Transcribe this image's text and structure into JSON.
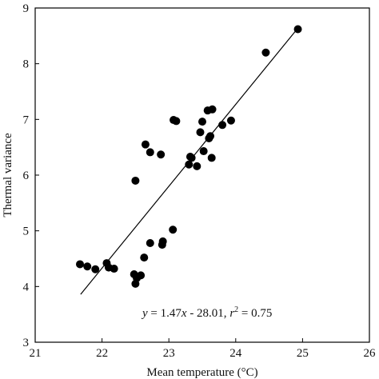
{
  "chart_data": {
    "type": "scatter",
    "xlabel": "Mean temperature (°C)",
    "ylabel": "Thermal variance",
    "xlim": [
      21,
      26
    ],
    "ylim": [
      3,
      9
    ],
    "x_ticks": [
      "21",
      "22",
      "23",
      "24",
      "25",
      "26"
    ],
    "y_ticks": [
      "3",
      "4",
      "5",
      "6",
      "7",
      "8",
      "9"
    ],
    "annotation": {
      "y": "y",
      "eq": " = 1.47",
      "x": "x",
      "rest": " - 28.01, ",
      "r": "r",
      "sup": "2",
      "tail": " = 0.75"
    },
    "fit_line": {
      "slope": 1.47,
      "intercept": -28.01,
      "x_range": [
        21.68,
        24.92
      ]
    },
    "grid": false,
    "points": [
      {
        "x": 21.67,
        "y": 4.4
      },
      {
        "x": 21.78,
        "y": 4.36
      },
      {
        "x": 21.9,
        "y": 4.31
      },
      {
        "x": 22.07,
        "y": 4.42
      },
      {
        "x": 22.1,
        "y": 4.34
      },
      {
        "x": 22.18,
        "y": 4.32
      },
      {
        "x": 22.48,
        "y": 4.22
      },
      {
        "x": 22.5,
        "y": 4.05
      },
      {
        "x": 22.52,
        "y": 4.15
      },
      {
        "x": 22.58,
        "y": 4.2
      },
      {
        "x": 22.63,
        "y": 4.52
      },
      {
        "x": 22.72,
        "y": 4.78
      },
      {
        "x": 22.9,
        "y": 4.75
      },
      {
        "x": 22.91,
        "y": 4.81
      },
      {
        "x": 23.06,
        "y": 5.02
      },
      {
        "x": 22.5,
        "y": 5.9
      },
      {
        "x": 22.65,
        "y": 6.55
      },
      {
        "x": 22.72,
        "y": 6.41
      },
      {
        "x": 22.88,
        "y": 6.37
      },
      {
        "x": 23.07,
        "y": 6.99
      },
      {
        "x": 23.11,
        "y": 6.97
      },
      {
        "x": 23.3,
        "y": 6.19
      },
      {
        "x": 23.32,
        "y": 6.33
      },
      {
        "x": 23.34,
        "y": 6.31
      },
      {
        "x": 23.42,
        "y": 6.16
      },
      {
        "x": 23.47,
        "y": 6.77
      },
      {
        "x": 23.5,
        "y": 6.96
      },
      {
        "x": 23.52,
        "y": 6.43
      },
      {
        "x": 23.58,
        "y": 7.16
      },
      {
        "x": 23.6,
        "y": 6.66
      },
      {
        "x": 23.62,
        "y": 6.7
      },
      {
        "x": 23.64,
        "y": 6.31
      },
      {
        "x": 23.65,
        "y": 7.18
      },
      {
        "x": 23.8,
        "y": 6.9
      },
      {
        "x": 23.93,
        "y": 6.98
      },
      {
        "x": 24.45,
        "y": 8.2
      },
      {
        "x": 24.93,
        "y": 8.62
      }
    ]
  }
}
